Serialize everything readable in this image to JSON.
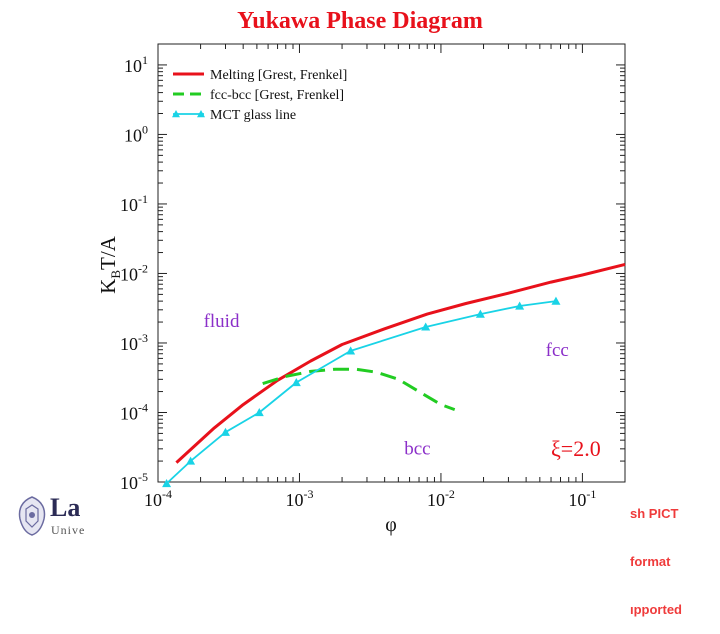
{
  "slide": {
    "title": "Yukawa Phase Diagram",
    "logo": {
      "brand": "La",
      "subtitle": "Unive"
    },
    "placeholder_lines": [
      "sh PICT",
      "format",
      "ıpported"
    ]
  },
  "chart_data": {
    "type": "line",
    "xlabel": "φ",
    "ylabel": "K_B T/A",
    "x_scale": "log",
    "y_scale": "log",
    "xlim": [
      0.0001,
      0.2
    ],
    "ylim": [
      1e-05,
      20
    ],
    "x_ticks": [
      {
        "value": 0.0001,
        "base": "10",
        "exp": "-4"
      },
      {
        "value": 0.001,
        "base": "10",
        "exp": "-3"
      },
      {
        "value": 0.01,
        "base": "10",
        "exp": "-2"
      },
      {
        "value": 0.1,
        "base": "10",
        "exp": "-1"
      }
    ],
    "y_ticks": [
      {
        "value": 1e-05,
        "base": "10",
        "exp": "-5"
      },
      {
        "value": 0.0001,
        "base": "10",
        "exp": "-4"
      },
      {
        "value": 0.001,
        "base": "10",
        "exp": "-3"
      },
      {
        "value": 0.01,
        "base": "10",
        "exp": "-2"
      },
      {
        "value": 0.1,
        "base": "10",
        "exp": "-1"
      },
      {
        "value": 1,
        "base": "10",
        "exp": "0"
      },
      {
        "value": 10,
        "base": "10",
        "exp": "1"
      }
    ],
    "series": [
      {
        "name": "Melting  [Grest, Frenkel]",
        "color": "#e8111b",
        "style": "solid",
        "marker": "none",
        "x": [
          0.000135,
          0.00025,
          0.0004,
          0.0007,
          0.0012,
          0.002,
          0.004,
          0.008,
          0.015,
          0.03,
          0.06,
          0.1,
          0.2
        ],
        "y": [
          1.9e-05,
          6e-05,
          0.00013,
          0.00029,
          0.00055,
          0.00095,
          0.0016,
          0.0026,
          0.0037,
          0.0052,
          0.0075,
          0.0095,
          0.0135
        ]
      },
      {
        "name": "fcc-bcc  [Grest, Frenkel]",
        "color": "#22cc22",
        "style": "dashed",
        "marker": "none",
        "x": [
          0.00055,
          0.0008,
          0.0012,
          0.0018,
          0.0025,
          0.0035,
          0.005,
          0.007,
          0.01,
          0.0125
        ],
        "y": [
          0.00026,
          0.00033,
          0.00039,
          0.00042,
          0.00042,
          0.00038,
          0.0003,
          0.0002,
          0.00013,
          0.00011
        ]
      },
      {
        "name": "MCT glass line",
        "color": "#19d3e6",
        "style": "solid",
        "marker": "triangle",
        "x": [
          0.000115,
          0.00017,
          0.0003,
          0.00052,
          0.00095,
          0.0023,
          0.0078,
          0.019,
          0.036,
          0.065
        ],
        "y": [
          9.5e-06,
          2e-05,
          5.2e-05,
          0.0001,
          0.00027,
          0.00077,
          0.0017,
          0.0026,
          0.0034,
          0.004
        ]
      }
    ],
    "region_labels": [
      {
        "text": "fluid",
        "x": 0.00021,
        "y": 0.0017
      },
      {
        "text": "fcc",
        "x": 0.055,
        "y": 0.00065
      },
      {
        "text": "bcc",
        "x": 0.0055,
        "y": 2.5e-05
      }
    ],
    "annotation": {
      "text": "ξ=2.0",
      "color": "#e8111b"
    },
    "legend": "top-left",
    "grid": false
  }
}
